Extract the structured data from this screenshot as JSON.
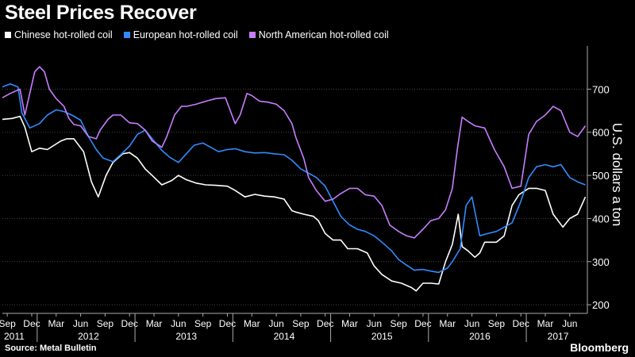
{
  "header": {
    "title": "Steel Prices Recover"
  },
  "footer": {
    "source": "Source: Metal Bulletin",
    "brand": "Bloomberg"
  },
  "chart_data": {
    "type": "line",
    "title": "Steel Prices Recover",
    "ylabel": "U.S. dollars a ton",
    "ylim": [
      180,
      800
    ],
    "yticks": [
      200,
      300,
      400,
      500,
      600,
      700
    ],
    "xlim": [
      2011.62,
      2017.6
    ],
    "grid": true,
    "legend_position": "top-left",
    "month_ticks": [
      {
        "x": 2011.67,
        "label": "Sep"
      },
      {
        "x": 2011.92,
        "label": "Dec"
      },
      {
        "x": 2012.17,
        "label": "Mar"
      },
      {
        "x": 2012.42,
        "label": "Jun"
      },
      {
        "x": 2012.67,
        "label": "Sep"
      },
      {
        "x": 2012.92,
        "label": "Dec"
      },
      {
        "x": 2013.17,
        "label": "Mar"
      },
      {
        "x": 2013.42,
        "label": "Jun"
      },
      {
        "x": 2013.67,
        "label": "Sep"
      },
      {
        "x": 2013.92,
        "label": "Dec"
      },
      {
        "x": 2014.17,
        "label": "Mar"
      },
      {
        "x": 2014.42,
        "label": "Jun"
      },
      {
        "x": 2014.67,
        "label": "Sep"
      },
      {
        "x": 2014.92,
        "label": "Dec"
      },
      {
        "x": 2015.17,
        "label": "Mar"
      },
      {
        "x": 2015.42,
        "label": "Jun"
      },
      {
        "x": 2015.67,
        "label": "Sep"
      },
      {
        "x": 2015.92,
        "label": "Dec"
      },
      {
        "x": 2016.17,
        "label": "Mar"
      },
      {
        "x": 2016.42,
        "label": "Jun"
      },
      {
        "x": 2016.67,
        "label": "Sep"
      },
      {
        "x": 2016.92,
        "label": "Dec"
      },
      {
        "x": 2017.17,
        "label": "Mar"
      },
      {
        "x": 2017.42,
        "label": "Jun"
      }
    ],
    "year_ticks": [
      {
        "x": 2011.67,
        "label": "2011"
      },
      {
        "x": 2012.5,
        "label": "2012"
      },
      {
        "x": 2013.5,
        "label": "2013"
      },
      {
        "x": 2014.5,
        "label": "2014"
      },
      {
        "x": 2015.5,
        "label": "2015"
      },
      {
        "x": 2016.5,
        "label": "2016"
      },
      {
        "x": 2017.3,
        "label": "2017"
      }
    ],
    "series": [
      {
        "name": "Chinese hot-rolled coil",
        "color": "#ffffff",
        "x": [
          2011.62,
          2011.72,
          2011.8,
          2011.85,
          2011.92,
          2012.0,
          2012.08,
          2012.15,
          2012.22,
          2012.28,
          2012.35,
          2012.45,
          2012.53,
          2012.6,
          2012.68,
          2012.75,
          2012.85,
          2012.92,
          2013.0,
          2013.08,
          2013.15,
          2013.25,
          2013.35,
          2013.42,
          2013.5,
          2013.6,
          2013.7,
          2013.8,
          2013.92,
          2014.0,
          2014.1,
          2014.2,
          2014.3,
          2014.4,
          2014.5,
          2014.58,
          2014.62,
          2014.7,
          2014.8,
          2014.85,
          2014.92,
          2015.0,
          2015.08,
          2015.15,
          2015.25,
          2015.35,
          2015.42,
          2015.5,
          2015.6,
          2015.7,
          2015.8,
          2015.85,
          2015.92,
          2016.0,
          2016.08,
          2016.15,
          2016.22,
          2016.28,
          2016.32,
          2016.38,
          2016.45,
          2016.5,
          2016.55,
          2016.6,
          2016.67,
          2016.75,
          2016.83,
          2016.9,
          2017.0,
          2017.08,
          2017.17,
          2017.25,
          2017.35,
          2017.42,
          2017.5,
          2017.58
        ],
        "values": [
          630,
          632,
          637,
          612,
          555,
          563,
          560,
          570,
          580,
          585,
          585,
          555,
          485,
          450,
          500,
          530,
          550,
          553,
          540,
          515,
          500,
          478,
          488,
          500,
          490,
          482,
          478,
          477,
          475,
          465,
          450,
          456,
          452,
          450,
          445,
          418,
          415,
          410,
          405,
          395,
          365,
          350,
          350,
          330,
          330,
          320,
          290,
          270,
          255,
          250,
          240,
          232,
          250,
          250,
          248,
          300,
          340,
          410,
          335,
          325,
          310,
          320,
          345,
          345,
          345,
          360,
          430,
          455,
          470,
          470,
          465,
          410,
          380,
          400,
          410,
          450
        ]
      },
      {
        "name": "European hot-rolled coil",
        "color": "#2f8cff",
        "x": [
          2011.62,
          2011.7,
          2011.78,
          2011.82,
          2011.9,
          2012.0,
          2012.08,
          2012.17,
          2012.25,
          2012.33,
          2012.42,
          2012.5,
          2012.58,
          2012.65,
          2012.75,
          2012.83,
          2012.92,
          2013.0,
          2013.08,
          2013.17,
          2013.25,
          2013.33,
          2013.42,
          2013.5,
          2013.58,
          2013.67,
          2013.75,
          2013.83,
          2013.92,
          2014.0,
          2014.1,
          2014.2,
          2014.3,
          2014.4,
          2014.5,
          2014.58,
          2014.67,
          2014.75,
          2014.83,
          2014.92,
          2015.0,
          2015.08,
          2015.17,
          2015.25,
          2015.33,
          2015.42,
          2015.5,
          2015.6,
          2015.67,
          2015.75,
          2015.83,
          2015.92,
          2016.0,
          2016.08,
          2016.17,
          2016.22,
          2016.3,
          2016.36,
          2016.42,
          2016.5,
          2016.58,
          2016.67,
          2016.75,
          2016.83,
          2016.92,
          2017.0,
          2017.08,
          2017.17,
          2017.25,
          2017.33,
          2017.42,
          2017.5,
          2017.58
        ],
        "values": [
          705,
          712,
          705,
          645,
          610,
          620,
          640,
          652,
          648,
          640,
          628,
          590,
          560,
          540,
          532,
          548,
          568,
          595,
          605,
          580,
          558,
          542,
          530,
          550,
          570,
          575,
          565,
          555,
          560,
          562,
          555,
          552,
          553,
          550,
          548,
          535,
          515,
          505,
          495,
          475,
          440,
          405,
          385,
          375,
          370,
          360,
          345,
          325,
          305,
          292,
          280,
          282,
          278,
          275,
          285,
          300,
          330,
          430,
          450,
          360,
          365,
          370,
          380,
          390,
          440,
          495,
          520,
          525,
          520,
          525,
          495,
          485,
          478
        ]
      },
      {
        "name": "North American hot-rolled coil",
        "color": "#c77dff",
        "x": [
          2011.62,
          2011.7,
          2011.8,
          2011.85,
          2011.95,
          2012.0,
          2012.05,
          2012.1,
          2012.17,
          2012.25,
          2012.3,
          2012.35,
          2012.42,
          2012.5,
          2012.58,
          2012.62,
          2012.7,
          2012.75,
          2012.83,
          2012.92,
          2013.0,
          2013.08,
          2013.15,
          2013.25,
          2013.3,
          2013.38,
          2013.45,
          2013.5,
          2013.6,
          2013.7,
          2013.8,
          2013.9,
          2014.0,
          2014.05,
          2014.12,
          2014.17,
          2014.25,
          2014.33,
          2014.42,
          2014.5,
          2014.58,
          2014.62,
          2014.7,
          2014.75,
          2014.83,
          2014.92,
          2015.0,
          2015.08,
          2015.17,
          2015.25,
          2015.33,
          2015.42,
          2015.5,
          2015.58,
          2015.67,
          2015.75,
          2015.83,
          2015.92,
          2016.0,
          2016.08,
          2016.15,
          2016.22,
          2016.27,
          2016.32,
          2016.38,
          2016.45,
          2016.55,
          2016.65,
          2016.75,
          2016.83,
          2016.92,
          2017.0,
          2017.08,
          2017.17,
          2017.25,
          2017.33,
          2017.42,
          2017.5,
          2017.58
        ],
        "values": [
          680,
          690,
          700,
          640,
          740,
          752,
          740,
          700,
          678,
          660,
          632,
          618,
          615,
          590,
          585,
          605,
          630,
          640,
          640,
          622,
          620,
          605,
          580,
          565,
          590,
          640,
          660,
          660,
          665,
          672,
          678,
          680,
          620,
          640,
          690,
          685,
          672,
          670,
          665,
          650,
          620,
          588,
          540,
          495,
          465,
          440,
          445,
          458,
          470,
          470,
          455,
          452,
          430,
          385,
          370,
          360,
          355,
          375,
          395,
          400,
          420,
          470,
          560,
          635,
          625,
          615,
          610,
          560,
          520,
          470,
          475,
          595,
          625,
          640,
          660,
          650,
          600,
          590,
          615
        ]
      }
    ]
  }
}
